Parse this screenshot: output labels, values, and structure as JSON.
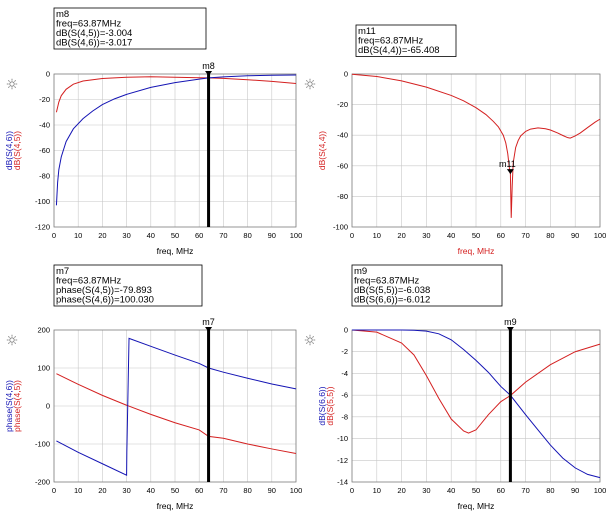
{
  "colors": {
    "red": "#d42020",
    "blue": "#1414b4",
    "marker": "#000000",
    "grid": "#c8c8c8",
    "axis": "#808080"
  },
  "chart_data": [
    {
      "id": "tl",
      "type": "line",
      "xlabel": "freq, MHz",
      "xlabel_color": "#000000",
      "ylabels": [
        {
          "text": "dB(S(4,6))",
          "color": "#1414b4"
        },
        {
          "text": "dB(S(4,5))",
          "color": "#d42020"
        }
      ],
      "xlim": [
        0,
        100
      ],
      "ylim": [
        -120,
        0
      ],
      "xticks": [
        0,
        10,
        20,
        30,
        40,
        50,
        60,
        70,
        80,
        90,
        100
      ],
      "yticks": [
        0,
        -20,
        -40,
        -60,
        -80,
        -100,
        -120
      ],
      "series": [
        {
          "color": "#d42020",
          "x": [
            1,
            2,
            3,
            5,
            8,
            12,
            20,
            30,
            40,
            50,
            60,
            63.87,
            70,
            80,
            90,
            100
          ],
          "y": [
            -30,
            -22,
            -17,
            -12,
            -8,
            -5.5,
            -3.5,
            -2.6,
            -2.2,
            -2.5,
            -2.9,
            -3.0,
            -3.4,
            -4.5,
            -5.8,
            -7.5
          ]
        },
        {
          "color": "#1414b4",
          "x": [
            1,
            1.5,
            2,
            3,
            5,
            8,
            12,
            16,
            20,
            25,
            30,
            40,
            50,
            60,
            63.87,
            70,
            80,
            90,
            100
          ],
          "y": [
            -103,
            -85,
            -75,
            -65,
            -53,
            -43,
            -35,
            -29,
            -24,
            -19.5,
            -16,
            -10.5,
            -6.8,
            -4,
            -3.0,
            -2.3,
            -1.4,
            -1,
            -0.8
          ]
        }
      ],
      "marker": {
        "name": "m8",
        "x": 63.87,
        "y": 0,
        "lines": [
          "m8",
          "freq=63.87MHz",
          "dB(S(4,5))=-3.004",
          "dB(S(4,6))=-3.017"
        ]
      }
    },
    {
      "id": "tr",
      "type": "line",
      "xlabel": "freq, MHz",
      "xlabel_color": "#d42020",
      "ylabels": [
        {
          "text": "dB(S(4,4))",
          "color": "#d42020"
        }
      ],
      "xlim": [
        0,
        100
      ],
      "ylim": [
        -100,
        0
      ],
      "xticks": [
        0,
        10,
        20,
        30,
        40,
        50,
        60,
        70,
        80,
        90,
        100
      ],
      "yticks": [
        0,
        -20,
        -40,
        -60,
        -80,
        -100
      ],
      "series": [
        {
          "color": "#d42020",
          "x": [
            0,
            10,
            20,
            30,
            40,
            45,
            50,
            54,
            57,
            59,
            61,
            62,
            62.8,
            63.5,
            63.87,
            64.2,
            64.6,
            65,
            66,
            67,
            68,
            70,
            72,
            75,
            78,
            80,
            83,
            85,
            87,
            88,
            90,
            92,
            95,
            98,
            100
          ],
          "y": [
            -0.2,
            -1.6,
            -4.5,
            -8.6,
            -14,
            -17.5,
            -22,
            -26.5,
            -31,
            -34.5,
            -40,
            -45,
            -52,
            -62,
            -65.4,
            -94,
            -73,
            -58,
            -48,
            -43.5,
            -40.5,
            -37.5,
            -36,
            -35.2,
            -35.8,
            -36.6,
            -38.6,
            -40.2,
            -41.6,
            -41.9,
            -40.5,
            -38.6,
            -35,
            -31.5,
            -29.5
          ]
        }
      ],
      "marker": {
        "name": "m11",
        "x": 63.87,
        "y": -65.408,
        "lines": [
          "m11",
          "freq=63.87MHz",
          "dB(S(4,4))=-65.408"
        ]
      }
    },
    {
      "id": "bl",
      "type": "line",
      "xlabel": "freq, MHz",
      "xlabel_color": "#000000",
      "ylabels": [
        {
          "text": "phase(S(4,6))",
          "color": "#1414b4"
        },
        {
          "text": "phase(S(4,5))",
          "color": "#d42020"
        }
      ],
      "xlim": [
        0,
        100
      ],
      "ylim": [
        -200,
        200
      ],
      "xticks": [
        0,
        10,
        20,
        30,
        40,
        50,
        60,
        70,
        80,
        90,
        100
      ],
      "yticks": [
        200,
        100,
        0,
        -100,
        -200
      ],
      "series": [
        {
          "color": "#d42020",
          "x": [
            1,
            10,
            20,
            30,
            40,
            50,
            60,
            63.87,
            70,
            80,
            90,
            100
          ],
          "y": [
            85,
            57,
            28,
            2,
            -22,
            -44,
            -63,
            -79.893,
            -85,
            -100,
            -113,
            -125
          ]
        },
        {
          "color": "#1414b4",
          "x": [
            1,
            10,
            20,
            30,
            30.1,
            31,
            40,
            50,
            60,
            63.87,
            70,
            80,
            90,
            100
          ],
          "y": [
            -92,
            -122,
            -152,
            -182,
            -120,
            178,
            157,
            134,
            112,
            100.03,
            89,
            73,
            58,
            45
          ]
        }
      ],
      "marker": {
        "name": "m7",
        "x": 63.87,
        "y": 200,
        "lines": [
          "m7",
          "freq=63.87MHz",
          "phase(S(4,5))=-79.893",
          "phase(S(4,6))=100.030"
        ]
      }
    },
    {
      "id": "br",
      "type": "line",
      "xlabel": "freq, MHz",
      "xlabel_color": "#000000",
      "ylabels": [
        {
          "text": "dB(S(6,6))",
          "color": "#1414b4"
        },
        {
          "text": "dB(S(5,5))",
          "color": "#d42020"
        }
      ],
      "xlim": [
        0,
        100
      ],
      "ylim": [
        -14,
        0
      ],
      "xticks": [
        0,
        10,
        20,
        30,
        40,
        50,
        60,
        70,
        80,
        90,
        100
      ],
      "yticks": [
        0,
        -2,
        -4,
        -6,
        -8,
        -10,
        -12,
        -14
      ],
      "series": [
        {
          "color": "#d42020",
          "x": [
            0,
            10,
            20,
            25,
            30,
            35,
            40,
            45,
            47,
            50,
            55,
            60,
            63.87,
            70,
            80,
            90,
            100
          ],
          "y": [
            0,
            -0.2,
            -1.2,
            -2.3,
            -4.2,
            -6.3,
            -8.2,
            -9.3,
            -9.5,
            -9.2,
            -7.8,
            -6.6,
            -6.038,
            -4.8,
            -3.2,
            -2.0,
            -1.3
          ]
        },
        {
          "color": "#1414b4",
          "x": [
            0,
            10,
            20,
            25,
            30,
            35,
            40,
            45,
            50,
            55,
            60,
            63.87,
            70,
            75,
            80,
            85,
            90,
            95,
            100
          ],
          "y": [
            0,
            0,
            0,
            -0.02,
            -0.1,
            -0.35,
            -0.9,
            -1.8,
            -2.8,
            -3.9,
            -5.2,
            -6.012,
            -7.8,
            -9.2,
            -10.6,
            -11.8,
            -12.7,
            -13.3,
            -13.6
          ]
        }
      ],
      "marker": {
        "name": "m9",
        "x": 63.87,
        "y": 0,
        "lines": [
          "m9",
          "freq=63.87MHz",
          "dB(S(5,5))=-6.038",
          "dB(S(6,6))=-6.012"
        ]
      }
    }
  ]
}
